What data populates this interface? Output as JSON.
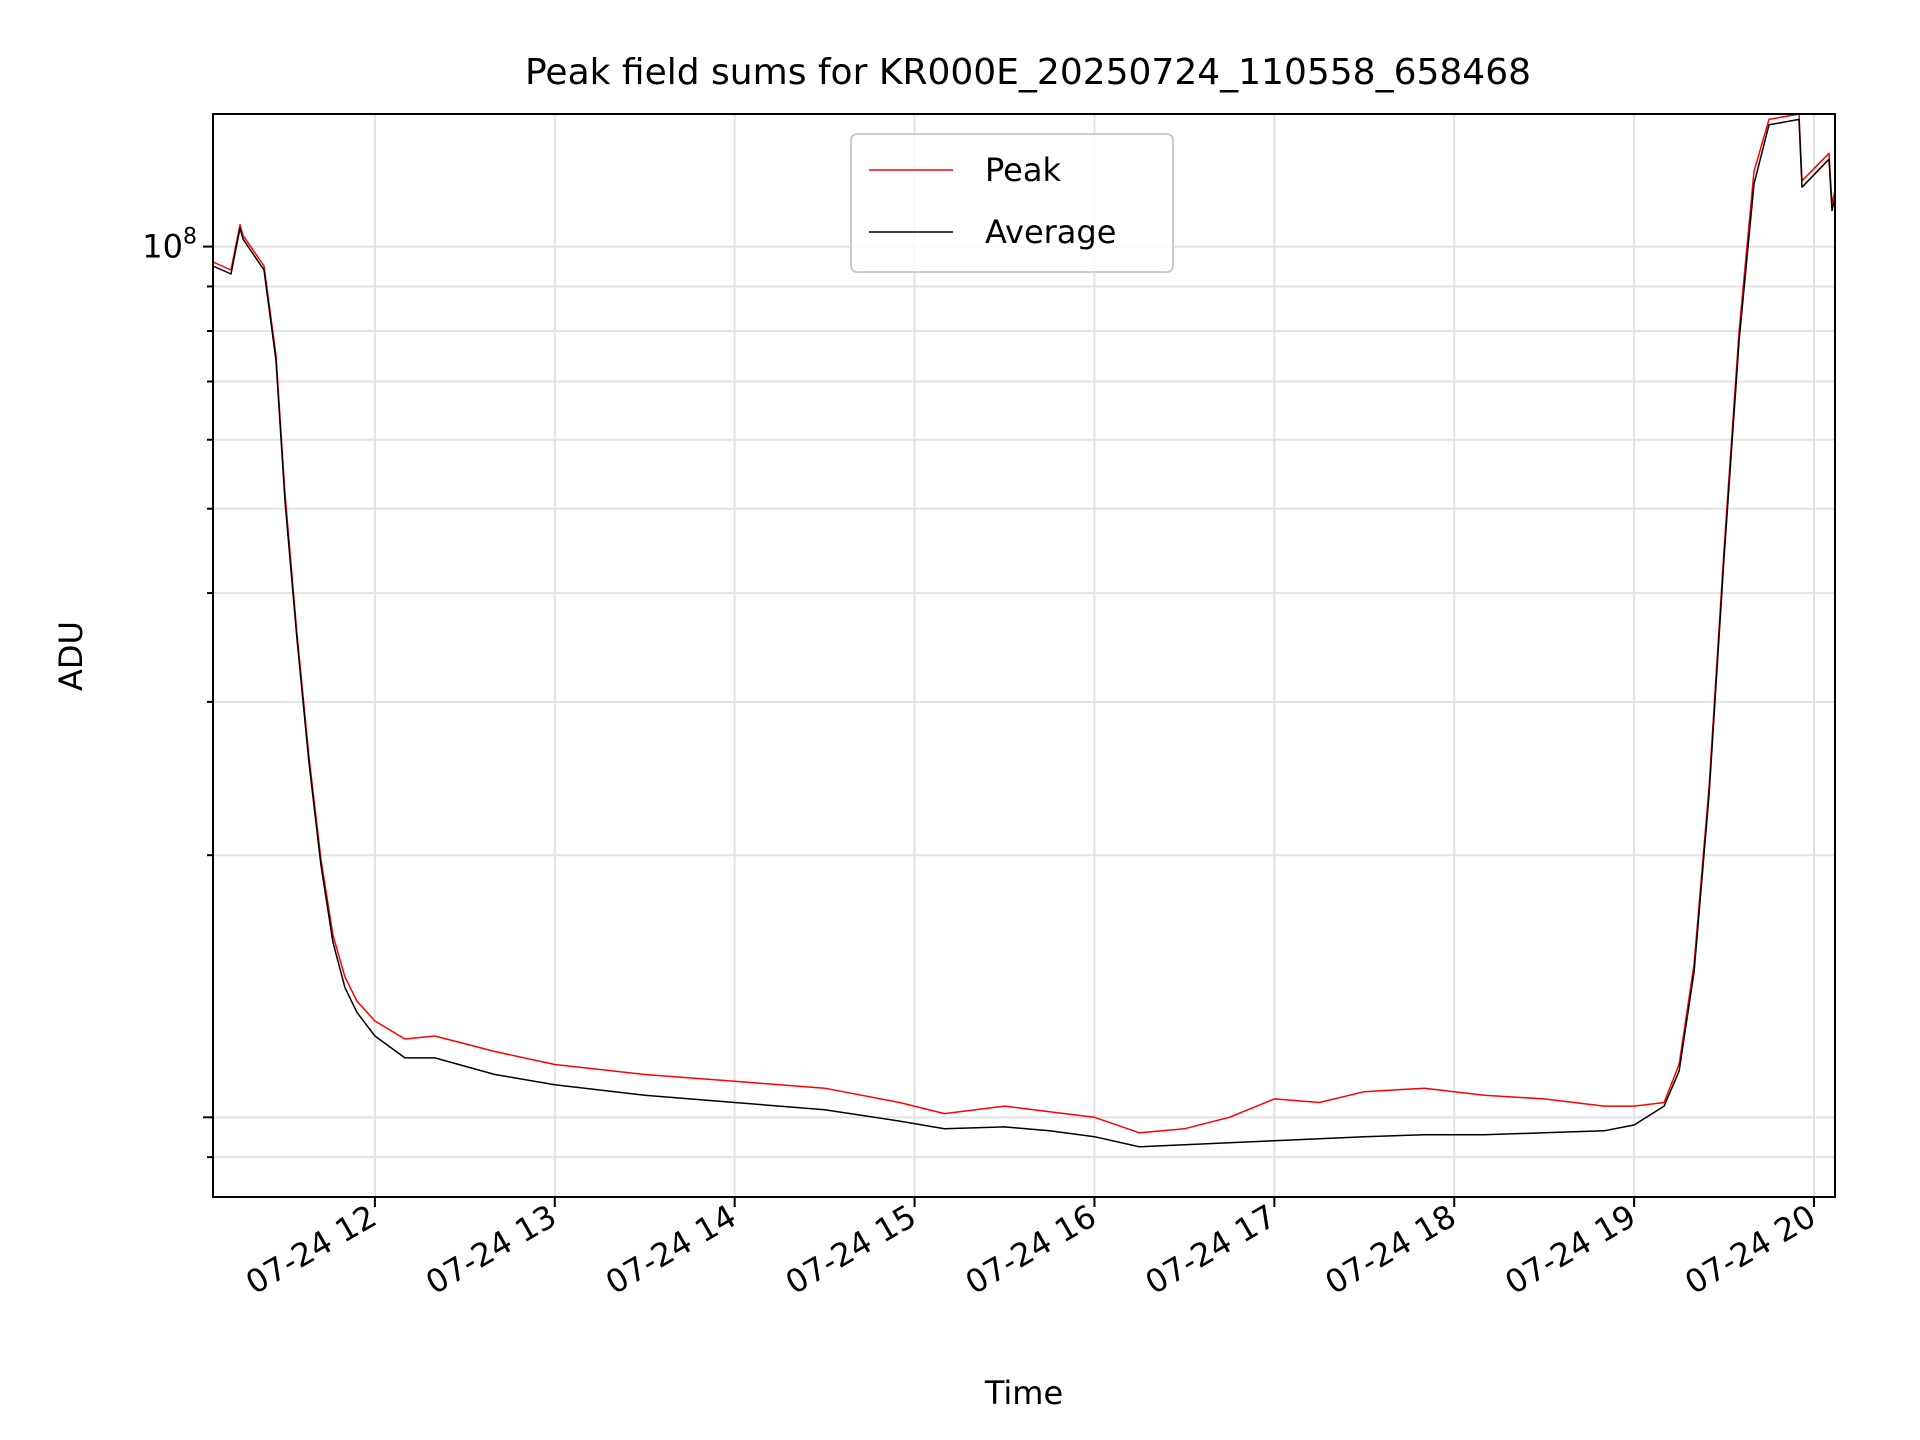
{
  "chart_data": {
    "type": "line",
    "title": "Peak field sums for KR000E_20250724_110558_658468",
    "xlabel": "Time",
    "ylabel": "ADU",
    "y_scale": "log",
    "y_tick_labels": [
      {
        "value": 100000000,
        "base": "10",
        "exp": "8"
      }
    ],
    "x_tick_labels": [
      "07-24 12",
      "07-24 13",
      "07-24 14",
      "07-24 15",
      "07-24 16",
      "07-24 17",
      "07-24 18",
      "07-24 19",
      "07-24 20"
    ],
    "x_tick_values": [
      "2025-07-24 12:00",
      "2025-07-24 13:00",
      "2025-07-24 14:00",
      "2025-07-24 15:00",
      "2025-07-24 16:00",
      "2025-07-24 17:00",
      "2025-07-24 18:00",
      "2025-07-24 19:00",
      "2025-07-24 20:00"
    ],
    "xlim": [
      "2025-07-24 11:06",
      "2025-07-24 20:07"
    ],
    "ylim": [
      8100000,
      142000000
    ],
    "grid": true,
    "legend_position": "upper center",
    "series": [
      {
        "name": "Peak",
        "color": "#ff0000",
        "x": [
          "2025-07-24 11:06",
          "2025-07-24 11:12",
          "2025-07-24 11:15",
          "2025-07-24 11:16",
          "2025-07-24 11:23",
          "2025-07-24 11:27",
          "2025-07-24 11:30",
          "2025-07-24 11:34",
          "2025-07-24 11:38",
          "2025-07-24 11:42",
          "2025-07-24 11:46",
          "2025-07-24 11:50",
          "2025-07-24 11:54",
          "2025-07-24 12:00",
          "2025-07-24 12:10",
          "2025-07-24 12:20",
          "2025-07-24 12:40",
          "2025-07-24 13:00",
          "2025-07-24 13:30",
          "2025-07-24 14:00",
          "2025-07-24 14:30",
          "2025-07-24 14:55",
          "2025-07-24 15:10",
          "2025-07-24 15:30",
          "2025-07-24 15:45",
          "2025-07-24 16:00",
          "2025-07-24 16:15",
          "2025-07-24 16:30",
          "2025-07-24 16:45",
          "2025-07-24 17:00",
          "2025-07-24 17:15",
          "2025-07-24 17:30",
          "2025-07-24 17:50",
          "2025-07-24 18:10",
          "2025-07-24 18:30",
          "2025-07-24 18:50",
          "2025-07-24 19:00",
          "2025-07-24 19:10",
          "2025-07-24 19:15",
          "2025-07-24 19:20",
          "2025-07-24 19:25",
          "2025-07-24 19:30",
          "2025-07-24 19:35",
          "2025-07-24 19:40",
          "2025-07-24 19:45",
          "2025-07-24 19:50",
          "2025-07-24 19:55",
          "2025-07-24 19:56",
          "2025-07-24 20:05",
          "2025-07-24 20:06",
          "2025-07-24 20:07"
        ],
        "y": [
          96000000,
          94000000,
          106000000,
          103000000,
          95000000,
          75000000,
          52000000,
          36000000,
          26000000,
          19800000,
          16200000,
          14500000,
          13600000,
          12900000,
          12300000,
          12400000,
          11900000,
          11500000,
          11200000,
          11000000,
          10800000,
          10400000,
          10100000,
          10300000,
          10150000,
          10000000,
          9600000,
          9700000,
          10000000,
          10500000,
          10400000,
          10700000,
          10800000,
          10600000,
          10500000,
          10300000,
          10300000,
          10400000,
          11500000,
          15000000,
          24000000,
          45000000,
          80000000,
          122000000,
          140000000,
          141000000,
          142000000,
          119000000,
          128000000,
          112000000,
          116000000
        ]
      },
      {
        "name": "Average",
        "color": "#000000",
        "x": [
          "2025-07-24 11:06",
          "2025-07-24 11:12",
          "2025-07-24 11:15",
          "2025-07-24 11:16",
          "2025-07-24 11:23",
          "2025-07-24 11:27",
          "2025-07-24 11:30",
          "2025-07-24 11:34",
          "2025-07-24 11:38",
          "2025-07-24 11:42",
          "2025-07-24 11:46",
          "2025-07-24 11:50",
          "2025-07-24 11:54",
          "2025-07-24 12:00",
          "2025-07-24 12:10",
          "2025-07-24 12:20",
          "2025-07-24 12:40",
          "2025-07-24 13:00",
          "2025-07-24 13:30",
          "2025-07-24 14:00",
          "2025-07-24 14:30",
          "2025-07-24 14:55",
          "2025-07-24 15:10",
          "2025-07-24 15:30",
          "2025-07-24 15:45",
          "2025-07-24 16:00",
          "2025-07-24 16:15",
          "2025-07-24 16:30",
          "2025-07-24 16:45",
          "2025-07-24 17:00",
          "2025-07-24 17:15",
          "2025-07-24 17:30",
          "2025-07-24 17:50",
          "2025-07-24 18:10",
          "2025-07-24 18:30",
          "2025-07-24 18:50",
          "2025-07-24 19:00",
          "2025-07-24 19:10",
          "2025-07-24 19:15",
          "2025-07-24 19:20",
          "2025-07-24 19:25",
          "2025-07-24 19:30",
          "2025-07-24 19:35",
          "2025-07-24 19:40",
          "2025-07-24 19:45",
          "2025-07-24 19:50",
          "2025-07-24 19:55",
          "2025-07-24 19:56",
          "2025-07-24 20:05",
          "2025-07-24 20:06",
          "2025-07-24 20:07"
        ],
        "y": [
          95000000,
          93000000,
          105000000,
          102000000,
          94000000,
          74000000,
          51000000,
          35500000,
          25600000,
          19500000,
          15900000,
          14100000,
          13200000,
          12400000,
          11700000,
          11700000,
          11200000,
          10900000,
          10600000,
          10400000,
          10200000,
          9900000,
          9700000,
          9750000,
          9650000,
          9500000,
          9250000,
          9300000,
          9350000,
          9400000,
          9450000,
          9500000,
          9550000,
          9550000,
          9600000,
          9650000,
          9800000,
          10300000,
          11300000,
          14700000,
          23500000,
          44000000,
          78000000,
          118000000,
          138000000,
          139000000,
          140000000,
          117000000,
          126000000,
          110000000,
          114000000
        ]
      }
    ]
  }
}
